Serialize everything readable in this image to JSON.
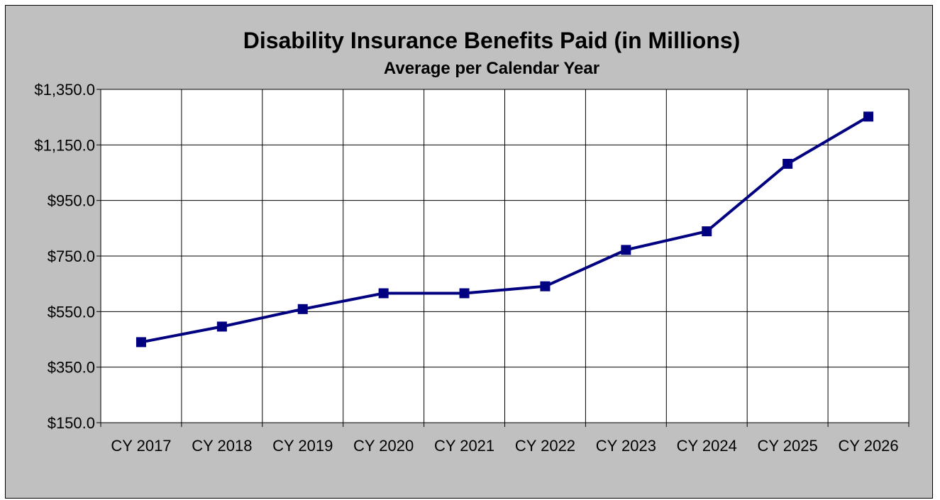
{
  "chart_data": {
    "type": "line",
    "title": "Disability Insurance Benefits Paid (in Millions)",
    "subtitle": "Average per Calendar Year",
    "categories": [
      "CY 2017",
      "CY 2018",
      "CY 2019",
      "CY 2020",
      "CY 2021",
      "CY 2022",
      "CY 2023",
      "CY 2024",
      "CY 2025",
      "CY 2026"
    ],
    "series": [
      {
        "values": [
          440.0,
          496.0,
          559.0,
          616.0,
          616.0,
          641.0,
          772.0,
          839.0,
          1082.0,
          1252.0
        ]
      }
    ],
    "ylim": [
      150.0,
      1350.0
    ],
    "y_ticks": [
      150.0,
      350.0,
      550.0,
      750.0,
      950.0,
      1150.0,
      1350.0
    ],
    "y_tick_labels": [
      "$150.0",
      "$350.0",
      "$550.0",
      "$750.0",
      "$950.0",
      "$1,150.0",
      "$1,350.0"
    ],
    "grid": true,
    "legend": "none",
    "colors": {
      "chart_background": "#c0c0c0",
      "plot_background": "#ffffff",
      "line": "#000080",
      "grid": "#000000"
    },
    "marker": "square"
  }
}
